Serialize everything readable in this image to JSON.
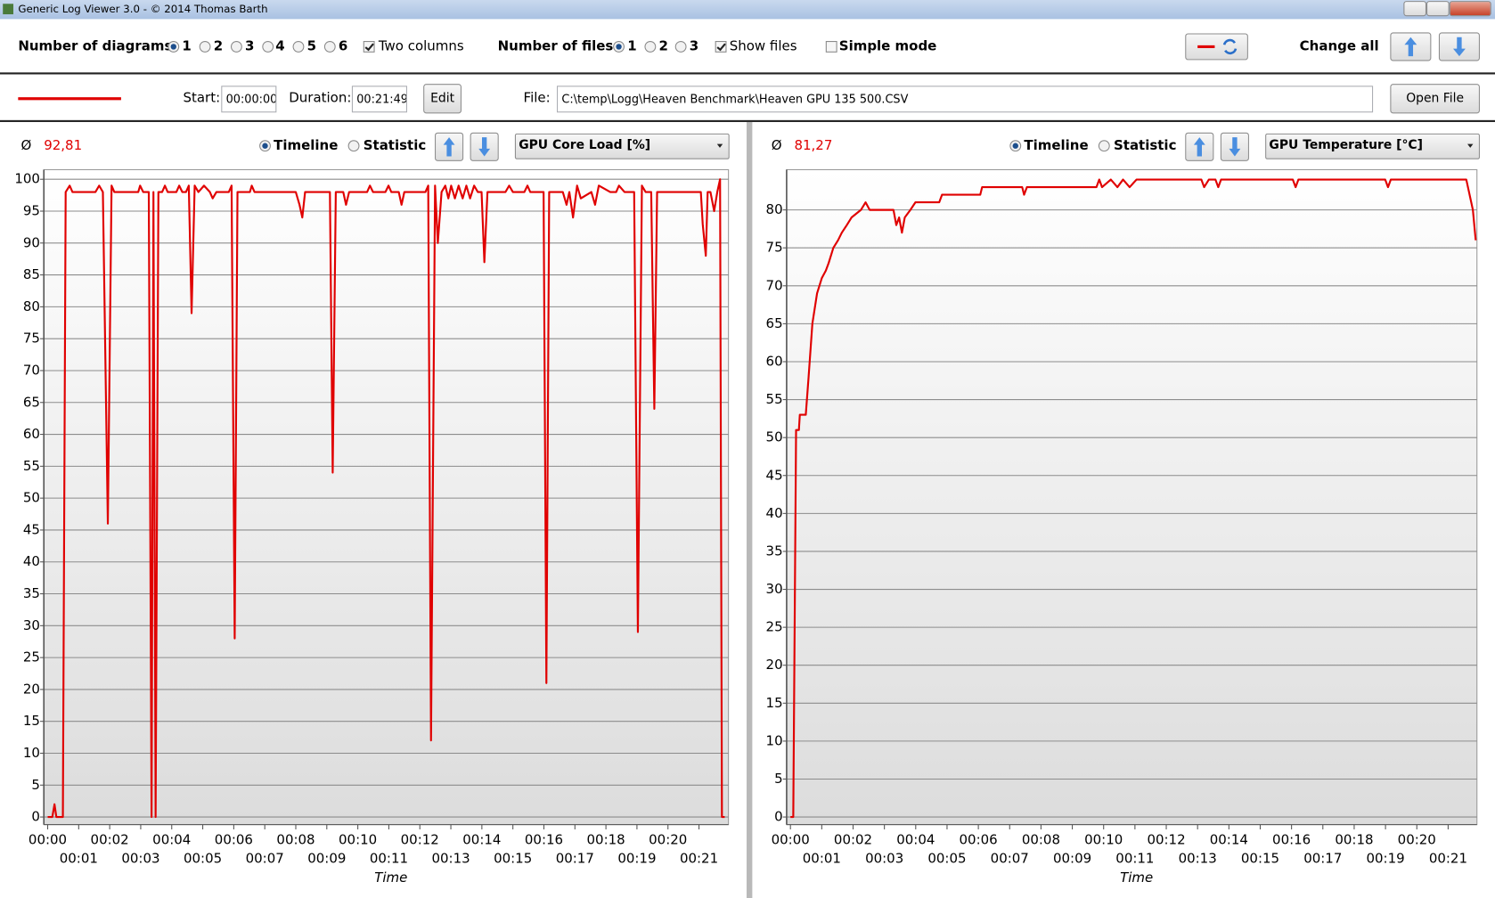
{
  "window": {
    "title": "Generic Log Viewer 3.0 - © 2014 Thomas Barth"
  },
  "toolbar": {
    "diagrams_label": "Number of diagrams",
    "diagram_options": [
      "1",
      "2",
      "3",
      "4",
      "5",
      "6"
    ],
    "two_columns": "Two columns",
    "files_label": "Number of files",
    "file_options": [
      "1",
      "2",
      "3"
    ],
    "show_files": "Show files",
    "simple_mode": "Simple mode",
    "change_all": "Change all"
  },
  "file_bar": {
    "start_label": "Start:",
    "start": "00:00:00",
    "duration_label": "Duration:",
    "duration": "00:21:49",
    "edit": "Edit",
    "file_label": "File:",
    "path": "C:\\temp\\Logg\\Heaven Benchmark\\Heaven GPU 135 500.CSV",
    "open_file": "Open File"
  },
  "panels": [
    {
      "avg_symbol": "Ø",
      "avg": "92,81",
      "timeline": "Timeline",
      "statistic": "Statistic",
      "sensor": "GPU Core Load [%]"
    },
    {
      "avg_symbol": "Ø",
      "avg": "81,27",
      "timeline": "Timeline",
      "statistic": "Statistic",
      "sensor": "GPU Temperature [°C]"
    }
  ],
  "chart_data": [
    {
      "type": "line",
      "x_label": "Time",
      "grid": true,
      "x": [
        0,
        0.15,
        0.22,
        0.28,
        0.49,
        0.58,
        0.71,
        0.8,
        1.54,
        1.66,
        1.78,
        1.94,
        2.06,
        2.15,
        2.92,
        2.98,
        3.08,
        3.26,
        3.35,
        3.41,
        3.48,
        3.57,
        3.69,
        3.78,
        3.87,
        4.15,
        4.24,
        4.34,
        4.46,
        4.55,
        4.64,
        4.74,
        4.86,
        5.04,
        5.23,
        5.32,
        5.44,
        5.84,
        5.93,
        6.03,
        6.12,
        6.52,
        6.58,
        6.67,
        8.0,
        8.12,
        8.21,
        8.3,
        9.1,
        9.19,
        9.29,
        9.53,
        9.62,
        9.72,
        10.3,
        10.39,
        10.49,
        10.89,
        10.99,
        11.08,
        11.32,
        11.41,
        11.5,
        12.18,
        12.27,
        12.36,
        12.49,
        12.58,
        12.7,
        12.82,
        12.92,
        13.01,
        13.13,
        13.25,
        13.38,
        13.5,
        13.62,
        13.75,
        13.87,
        13.99,
        14.08,
        14.18,
        14.76,
        14.88,
        15.0,
        15.37,
        15.47,
        15.56,
        15.99,
        16.08,
        16.17,
        16.61,
        16.73,
        16.82,
        16.94,
        17.07,
        17.19,
        17.53,
        17.65,
        17.77,
        18.14,
        18.33,
        18.42,
        18.6,
        18.91,
        19.03,
        19.16,
        19.28,
        19.46,
        19.56,
        19.65,
        19.99,
        21.06,
        21.12,
        21.22,
        21.28,
        21.37,
        21.49,
        21.59,
        21.68,
        21.74,
        21.83
      ],
      "series": [
        {
          "color": "#e00000",
          "values": [
            0,
            0,
            2,
            0,
            0,
            98,
            99,
            98,
            98,
            99,
            98,
            46,
            99,
            98,
            98,
            99,
            98,
            98,
            0,
            98,
            0,
            98,
            98,
            99,
            98,
            98,
            99,
            98,
            98,
            99,
            79,
            99,
            98,
            99,
            98,
            97,
            98,
            98,
            99,
            28,
            98,
            98,
            99,
            98,
            98,
            96,
            94,
            98,
            98,
            54,
            98,
            98,
            96,
            98,
            98,
            99,
            98,
            98,
            99,
            98,
            98,
            96,
            98,
            98,
            99,
            12,
            99,
            90,
            98,
            99,
            97,
            99,
            97,
            99,
            97,
            99,
            97,
            99,
            98,
            98,
            87,
            98,
            98,
            99,
            98,
            98,
            99,
            98,
            98,
            21,
            98,
            98,
            96,
            98,
            94,
            99,
            97,
            98,
            96,
            99,
            98,
            98,
            99,
            98,
            98,
            29,
            99,
            98,
            98,
            64,
            98,
            98,
            98,
            93,
            88,
            98,
            98,
            95,
            98,
            100,
            0,
            0
          ]
        }
      ],
      "xlim": [
        0,
        21.92
      ],
      "ylim": [
        0,
        101.5
      ],
      "xticks": [
        {
          "value": 0,
          "label": "00:00"
        },
        {
          "value": 1,
          "label": "00:01"
        },
        {
          "value": 2,
          "label": "00:02"
        },
        {
          "value": 3,
          "label": "00:03"
        },
        {
          "value": 4,
          "label": "00:04"
        },
        {
          "value": 5,
          "label": "00:05"
        },
        {
          "value": 6,
          "label": "00:06"
        },
        {
          "value": 7,
          "label": "00:07"
        },
        {
          "value": 8,
          "label": "00:08"
        },
        {
          "value": 9,
          "label": "00:09"
        },
        {
          "value": 10,
          "label": "00:10"
        },
        {
          "value": 11,
          "label": "00:11"
        },
        {
          "value": 12,
          "label": "00:12"
        },
        {
          "value": 13,
          "label": "00:13"
        },
        {
          "value": 14,
          "label": "00:14"
        },
        {
          "value": 15,
          "label": "00:15"
        },
        {
          "value": 16,
          "label": "00:16"
        },
        {
          "value": 17,
          "label": "00:17"
        },
        {
          "value": 18,
          "label": "00:18"
        },
        {
          "value": 19,
          "label": "00:19"
        },
        {
          "value": 20,
          "label": "00:20"
        },
        {
          "value": 21,
          "label": "00:21"
        }
      ],
      "yticks": [
        0,
        5,
        10,
        15,
        20,
        25,
        30,
        35,
        40,
        45,
        50,
        55,
        60,
        65,
        70,
        75,
        80,
        85,
        90,
        95,
        100
      ]
    },
    {
      "type": "line",
      "x_label": "Time",
      "grid": true,
      "x": [
        0,
        0.09,
        0.18,
        0.27,
        0.3,
        0.49,
        0.58,
        0.7,
        0.85,
        1.0,
        1.13,
        1.22,
        1.37,
        1.52,
        1.64,
        1.8,
        1.95,
        2.25,
        2.4,
        2.53,
        3.29,
        3.38,
        3.47,
        3.56,
        3.65,
        3.83,
        3.99,
        4.75,
        4.84,
        6.06,
        6.12,
        7.4,
        7.46,
        7.55,
        9.77,
        9.86,
        9.95,
        10.23,
        10.44,
        10.62,
        10.83,
        11.05,
        13.12,
        13.21,
        13.36,
        13.57,
        13.66,
        13.75,
        16.04,
        16.13,
        16.22,
        18.99,
        19.08,
        19.17,
        21.58,
        21.79,
        21.88
      ],
      "series": [
        {
          "color": "#e00000",
          "values": [
            0,
            0,
            51,
            51,
            53,
            53,
            58,
            65,
            69,
            71,
            72,
            73,
            75,
            76,
            77,
            78,
            79,
            80,
            81,
            80,
            80,
            78,
            79,
            77,
            79,
            80,
            81,
            81,
            82,
            82,
            83,
            83,
            82,
            83,
            83,
            84,
            83,
            84,
            83,
            84,
            83,
            84,
            84,
            83,
            84,
            84,
            83,
            84,
            84,
            83,
            84,
            84,
            83,
            84,
            84,
            80,
            76
          ]
        }
      ],
      "xlim": [
        0,
        21.92
      ],
      "ylim": [
        0,
        85.3
      ],
      "xticks": [
        {
          "value": 0,
          "label": "00:00"
        },
        {
          "value": 1,
          "label": "00:01"
        },
        {
          "value": 2,
          "label": "00:02"
        },
        {
          "value": 3,
          "label": "00:03"
        },
        {
          "value": 4,
          "label": "00:04"
        },
        {
          "value": 5,
          "label": "00:05"
        },
        {
          "value": 6,
          "label": "00:06"
        },
        {
          "value": 7,
          "label": "00:07"
        },
        {
          "value": 8,
          "label": "00:08"
        },
        {
          "value": 9,
          "label": "00:09"
        },
        {
          "value": 10,
          "label": "00:10"
        },
        {
          "value": 11,
          "label": "00:11"
        },
        {
          "value": 12,
          "label": "00:12"
        },
        {
          "value": 13,
          "label": "00:13"
        },
        {
          "value": 14,
          "label": "00:14"
        },
        {
          "value": 15,
          "label": "00:15"
        },
        {
          "value": 16,
          "label": "00:16"
        },
        {
          "value": 17,
          "label": "00:17"
        },
        {
          "value": 18,
          "label": "00:18"
        },
        {
          "value": 19,
          "label": "00:19"
        },
        {
          "value": 20,
          "label": "00:20"
        },
        {
          "value": 21,
          "label": "00:21"
        }
      ],
      "yticks": [
        0,
        5,
        10,
        15,
        20,
        25,
        30,
        35,
        40,
        45,
        50,
        55,
        60,
        65,
        70,
        75,
        80
      ]
    }
  ]
}
